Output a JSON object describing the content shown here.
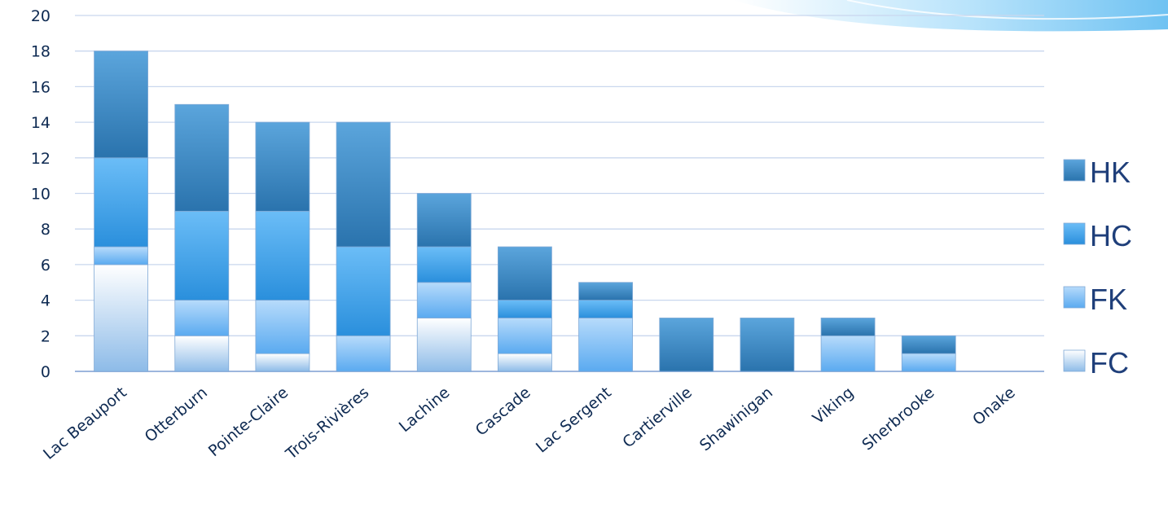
{
  "chart_data": {
    "type": "bar",
    "stacked": true,
    "categories": [
      "Lac Beauport",
      "Otterburn",
      "Pointe-Claire",
      "Trois-Rivières",
      "Lachine",
      "Cascade",
      "Lac Sergent",
      "Cartierville",
      "Shawinigan",
      "Viking",
      "Sherbrooke",
      "Onake"
    ],
    "series": [
      {
        "name": "FC",
        "values": [
          6,
          2,
          1,
          0,
          3,
          1,
          0,
          0,
          0,
          0,
          0,
          0
        ]
      },
      {
        "name": "FK",
        "values": [
          1,
          2,
          3,
          2,
          2,
          2,
          3,
          0,
          0,
          2,
          1,
          0
        ]
      },
      {
        "name": "HC",
        "values": [
          5,
          5,
          5,
          5,
          2,
          1,
          1,
          0,
          0,
          0,
          0,
          0
        ]
      },
      {
        "name": "HK",
        "values": [
          6,
          6,
          5,
          7,
          3,
          3,
          1,
          3,
          3,
          1,
          1,
          0
        ]
      }
    ],
    "yticks": [
      "0",
      "2",
      "4",
      "6",
      "8",
      "10",
      "12",
      "14",
      "16",
      "18",
      "20"
    ],
    "ylim": [
      0,
      20
    ],
    "grid": true,
    "legend_position": "right",
    "title": "",
    "xlabel": "",
    "ylabel": "",
    "colors": {
      "FC": [
        "#ffffff",
        "#8dbbe8"
      ],
      "FK": [
        "#b7dbfb",
        "#5aaaf0"
      ],
      "HC": [
        "#6bbdf7",
        "#2a8fdc"
      ],
      "HK": [
        "#5ba5dc",
        "#2a73ad"
      ],
      "grid": "#c9d7ee",
      "axis": "#9db6dd"
    }
  }
}
